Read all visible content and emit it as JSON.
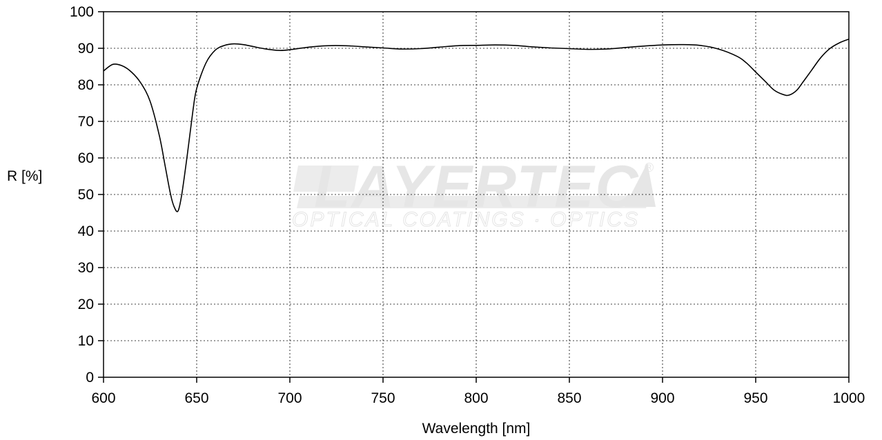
{
  "watermark": {
    "brand": "LAYERTEC",
    "registered": "®",
    "tagline": "OPTICAL COATINGS · OPTICS"
  },
  "chart_data": {
    "type": "line",
    "title": "",
    "xlabel": "Wavelength [nm]",
    "ylabel": "R [%]",
    "xlim": [
      600,
      1000
    ],
    "ylim": [
      0,
      100
    ],
    "x_ticks": [
      600,
      650,
      700,
      750,
      800,
      850,
      900,
      950,
      1000
    ],
    "y_ticks": [
      0,
      10,
      20,
      30,
      40,
      50,
      60,
      70,
      80,
      90,
      100
    ],
    "grid": true,
    "legend": "none",
    "colors": {
      "line": "#000000",
      "grid": "#000000",
      "watermark": "#e6e6e6"
    },
    "series": [
      {
        "x": [
          600,
          605,
          610,
          615,
          620,
          625,
          630,
          633,
          636,
          638,
          640,
          642,
          645,
          648,
          650,
          655,
          660,
          665,
          670,
          675,
          680,
          685,
          690,
          695,
          700,
          710,
          720,
          730,
          740,
          750,
          760,
          770,
          780,
          790,
          800,
          810,
          820,
          830,
          840,
          850,
          860,
          870,
          880,
          890,
          900,
          910,
          920,
          930,
          940,
          945,
          950,
          955,
          960,
          965,
          968,
          972,
          975,
          980,
          985,
          990,
          995,
          1000
        ],
        "y": [
          83.8,
          85.6,
          85.2,
          83.5,
          80.5,
          75.5,
          66,
          58,
          50,
          46.5,
          45.5,
          50,
          61,
          73,
          79,
          86,
          89.5,
          90.8,
          91.2,
          91,
          90.5,
          90,
          89.6,
          89.4,
          89.6,
          90.3,
          90.7,
          90.7,
          90.4,
          90.1,
          89.8,
          89.9,
          90.3,
          90.7,
          90.8,
          90.9,
          90.8,
          90.4,
          90.1,
          89.9,
          89.7,
          89.8,
          90.2,
          90.6,
          90.9,
          91,
          90.8,
          89.8,
          87.8,
          86,
          83.5,
          81,
          78.5,
          77.3,
          77.2,
          78.5,
          80.5,
          84,
          87.5,
          90,
          91.5,
          92.5
        ]
      }
    ]
  }
}
